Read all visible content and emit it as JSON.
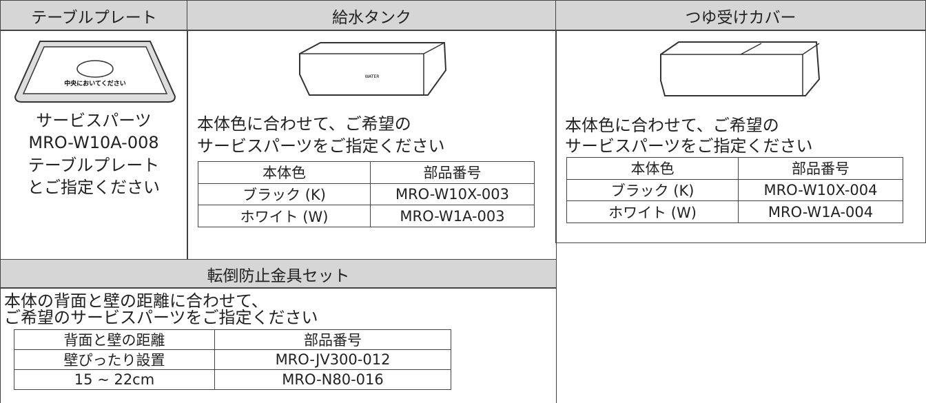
{
  "sections": [
    {
      "title": "テーブルプレート",
      "illustration_text": "中央においてください",
      "lines": [
        "サービスパーツ",
        "MRO-W10A-008",
        "テーブルプレート",
        "とご指定ください"
      ]
    },
    {
      "title": "給水タンク",
      "illustration_text": "WATER",
      "instruction": [
        "本体色に合わせて、ご希望の",
        "サービスパーツをご指定ください"
      ],
      "table": {
        "header": [
          "本体色",
          "部品番号"
        ],
        "rows": [
          [
            "ブラック (K)",
            "MRO-W10X-003"
          ],
          [
            "ホワイト (W)",
            "MRO-W1A-003"
          ]
        ]
      }
    },
    {
      "title": "つゆ受けカバー",
      "instruction": [
        "本体色に合わせて、ご希望の",
        "サービスパーツをご指定ください"
      ],
      "table": {
        "header": [
          "本体色",
          "部品番号"
        ],
        "rows": [
          [
            "ブラック (K)",
            "MRO-W10X-004"
          ],
          [
            "ホワイト (W)",
            "MRO-W1A-004"
          ]
        ]
      }
    },
    {
      "title": "転倒防止金具セット",
      "instruction": [
        "本体の背面と壁の距離に合わせて、",
        "ご希望のサービスパーツをご指定ください"
      ],
      "table": {
        "header": [
          "背面と壁の距離",
          "部品番号"
        ],
        "rows": [
          [
            "壁ぴったり設置",
            "MRO-JV300-012"
          ],
          [
            "15 ~ 22cm",
            "MRO-N80-016"
          ]
        ]
      }
    }
  ]
}
